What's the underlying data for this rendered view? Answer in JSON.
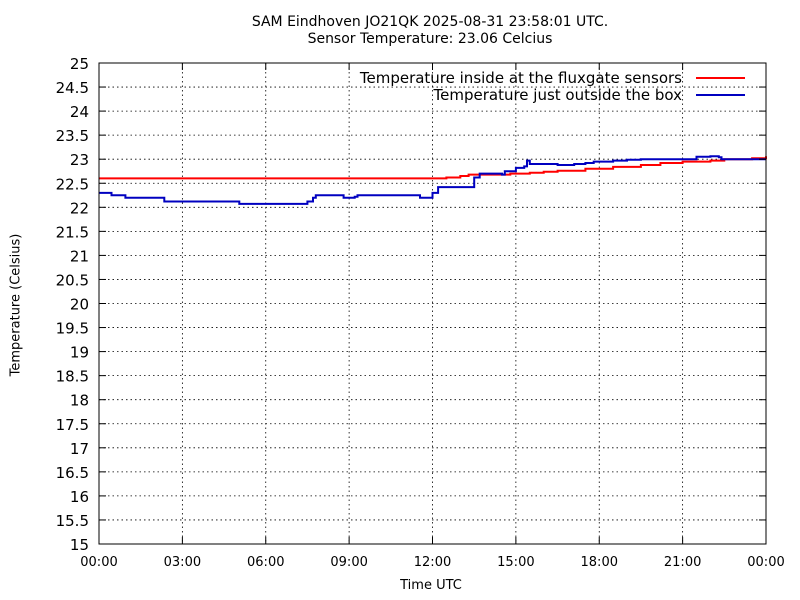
{
  "chart_data": {
    "type": "line",
    "title": "SAM Eindhoven JO21QK 2025-08-31 23:58:01 UTC.",
    "subtitle": "Sensor Temperature: 23.06 Celcius",
    "xlabel": "Time UTC",
    "ylabel": "Temperature (Celsius)",
    "xlim": [
      0,
      24
    ],
    "ylim": [
      15,
      25
    ],
    "x_ticks": [
      0,
      3,
      6,
      9,
      12,
      15,
      18,
      21,
      24
    ],
    "x_tick_labels": [
      "00:00",
      "03:00",
      "06:00",
      "09:00",
      "12:00",
      "15:00",
      "18:00",
      "21:00",
      "00:00"
    ],
    "y_ticks": [
      15,
      15.5,
      16,
      16.5,
      17,
      17.5,
      18,
      18.5,
      19,
      19.5,
      20,
      20.5,
      21,
      21.5,
      22,
      22.5,
      23,
      23.5,
      24,
      24.5,
      25
    ],
    "y_tick_labels": [
      "15",
      "15.5",
      "16",
      "16.5",
      "17",
      "17.5",
      "18",
      "18.5",
      "19",
      "19.5",
      "20",
      "20.5",
      "21",
      "21.5",
      "22",
      "22.5",
      "23",
      "23.5",
      "24",
      "24.5",
      "25"
    ],
    "grid": true,
    "legend_position": "top-right",
    "series": [
      {
        "name": "Temperature inside at the fluxgate sensors",
        "color": "#ff0000",
        "points": [
          [
            0.0,
            22.6
          ],
          [
            0.5,
            22.6
          ],
          [
            1.0,
            22.6
          ],
          [
            3.0,
            22.6
          ],
          [
            6.0,
            22.6
          ],
          [
            9.0,
            22.6
          ],
          [
            11.0,
            22.6
          ],
          [
            12.0,
            22.6
          ],
          [
            12.5,
            22.62
          ],
          [
            13.0,
            22.65
          ],
          [
            13.3,
            22.68
          ],
          [
            14.0,
            22.68
          ],
          [
            14.8,
            22.7
          ],
          [
            15.5,
            22.72
          ],
          [
            16.0,
            22.74
          ],
          [
            16.5,
            22.76
          ],
          [
            17.5,
            22.8
          ],
          [
            18.5,
            22.84
          ],
          [
            19.5,
            22.88
          ],
          [
            20.2,
            22.92
          ],
          [
            21.0,
            22.95
          ],
          [
            22.0,
            22.97
          ],
          [
            22.5,
            23.0
          ],
          [
            23.5,
            23.02
          ],
          [
            24.0,
            23.06
          ]
        ]
      },
      {
        "name": "Temperature just outside the box",
        "color": "#0000c0",
        "points": [
          [
            0.0,
            22.3
          ],
          [
            0.4,
            22.3
          ],
          [
            0.45,
            22.25
          ],
          [
            0.9,
            22.25
          ],
          [
            0.95,
            22.2
          ],
          [
            2.3,
            22.2
          ],
          [
            2.35,
            22.12
          ],
          [
            5.0,
            22.12
          ],
          [
            5.05,
            22.07
          ],
          [
            6.8,
            22.07
          ],
          [
            7.1,
            22.07
          ],
          [
            7.5,
            22.12
          ],
          [
            7.7,
            22.2
          ],
          [
            7.8,
            22.25
          ],
          [
            8.5,
            22.25
          ],
          [
            8.8,
            22.2
          ],
          [
            9.2,
            22.22
          ],
          [
            9.3,
            22.25
          ],
          [
            11.5,
            22.25
          ],
          [
            11.55,
            22.2
          ],
          [
            11.9,
            22.2
          ],
          [
            12.0,
            22.3
          ],
          [
            12.2,
            22.42
          ],
          [
            13.2,
            22.42
          ],
          [
            13.5,
            22.62
          ],
          [
            13.7,
            22.7
          ],
          [
            14.2,
            22.7
          ],
          [
            14.5,
            22.68
          ],
          [
            14.6,
            22.75
          ],
          [
            15.0,
            22.82
          ],
          [
            15.3,
            22.85
          ],
          [
            15.4,
            22.97
          ],
          [
            15.5,
            22.9
          ],
          [
            16.5,
            22.88
          ],
          [
            17.1,
            22.9
          ],
          [
            17.5,
            22.92
          ],
          [
            17.8,
            22.95
          ],
          [
            18.5,
            22.97
          ],
          [
            19.0,
            22.99
          ],
          [
            19.5,
            23.0
          ],
          [
            21.0,
            23.0
          ],
          [
            21.5,
            23.05
          ],
          [
            22.0,
            23.06
          ],
          [
            22.3,
            23.04
          ],
          [
            22.4,
            23.0
          ],
          [
            24.0,
            23.0
          ]
        ]
      }
    ]
  }
}
